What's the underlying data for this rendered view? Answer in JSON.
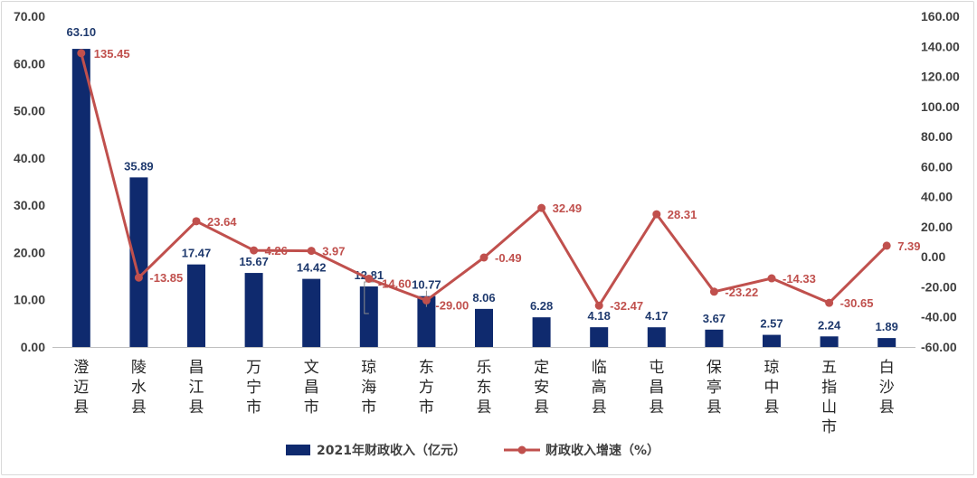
{
  "chart_data": {
    "type": "bar",
    "categories": [
      "澄迈县",
      "陵水县",
      "昌江县",
      "万宁市",
      "文昌市",
      "琼海市",
      "东方市",
      "乐东县",
      "定安县",
      "临高县",
      "屯昌县",
      "保亭县",
      "琼中县",
      "五指山市",
      "白沙县"
    ],
    "series": [
      {
        "name": "2021年财政收入（亿元）",
        "type": "bar",
        "axis": "left",
        "color": "#0f2a6e",
        "values": [
          63.1,
          35.89,
          17.47,
          15.67,
          14.42,
          12.81,
          10.77,
          8.06,
          6.28,
          4.18,
          4.17,
          3.67,
          2.57,
          2.24,
          1.89
        ],
        "labels": [
          "63.10",
          "35.89",
          "17.47",
          "15.67",
          "14.42",
          "12.81",
          "10.77",
          "8.06",
          "6.28",
          "4.18",
          "4.17",
          "3.67",
          "2.57",
          "2.24",
          "1.89"
        ]
      },
      {
        "name": "财政收入增速（%）",
        "type": "line",
        "axis": "right",
        "color": "#c0504d",
        "values": [
          135.45,
          -13.85,
          23.64,
          4.26,
          3.97,
          -14.6,
          -29.0,
          -0.49,
          32.49,
          -32.47,
          28.31,
          -23.22,
          -14.33,
          -30.65,
          7.39
        ],
        "labels": [
          "135.45",
          "-13.85",
          "23.64",
          "4.26",
          "3.97",
          "-14.60",
          "-29.00",
          "-0.49",
          "32.49",
          "-32.47",
          "28.31",
          "-23.22",
          "-14.33",
          "-30.65",
          "7.39"
        ]
      }
    ],
    "y_left": {
      "ylim": [
        0,
        70
      ],
      "ticks": [
        "0.00",
        "10.00",
        "20.00",
        "30.00",
        "40.00",
        "50.00",
        "60.00",
        "70.00"
      ]
    },
    "y_right": {
      "ylim": [
        -60,
        160
      ],
      "ticks": [
        "-60.00",
        "-40.00",
        "-20.00",
        "0.00",
        "20.00",
        "40.00",
        "60.00",
        "80.00",
        "100.00",
        "120.00",
        "140.00",
        "160.00"
      ]
    },
    "legend_position": "bottom",
    "grid": false
  }
}
